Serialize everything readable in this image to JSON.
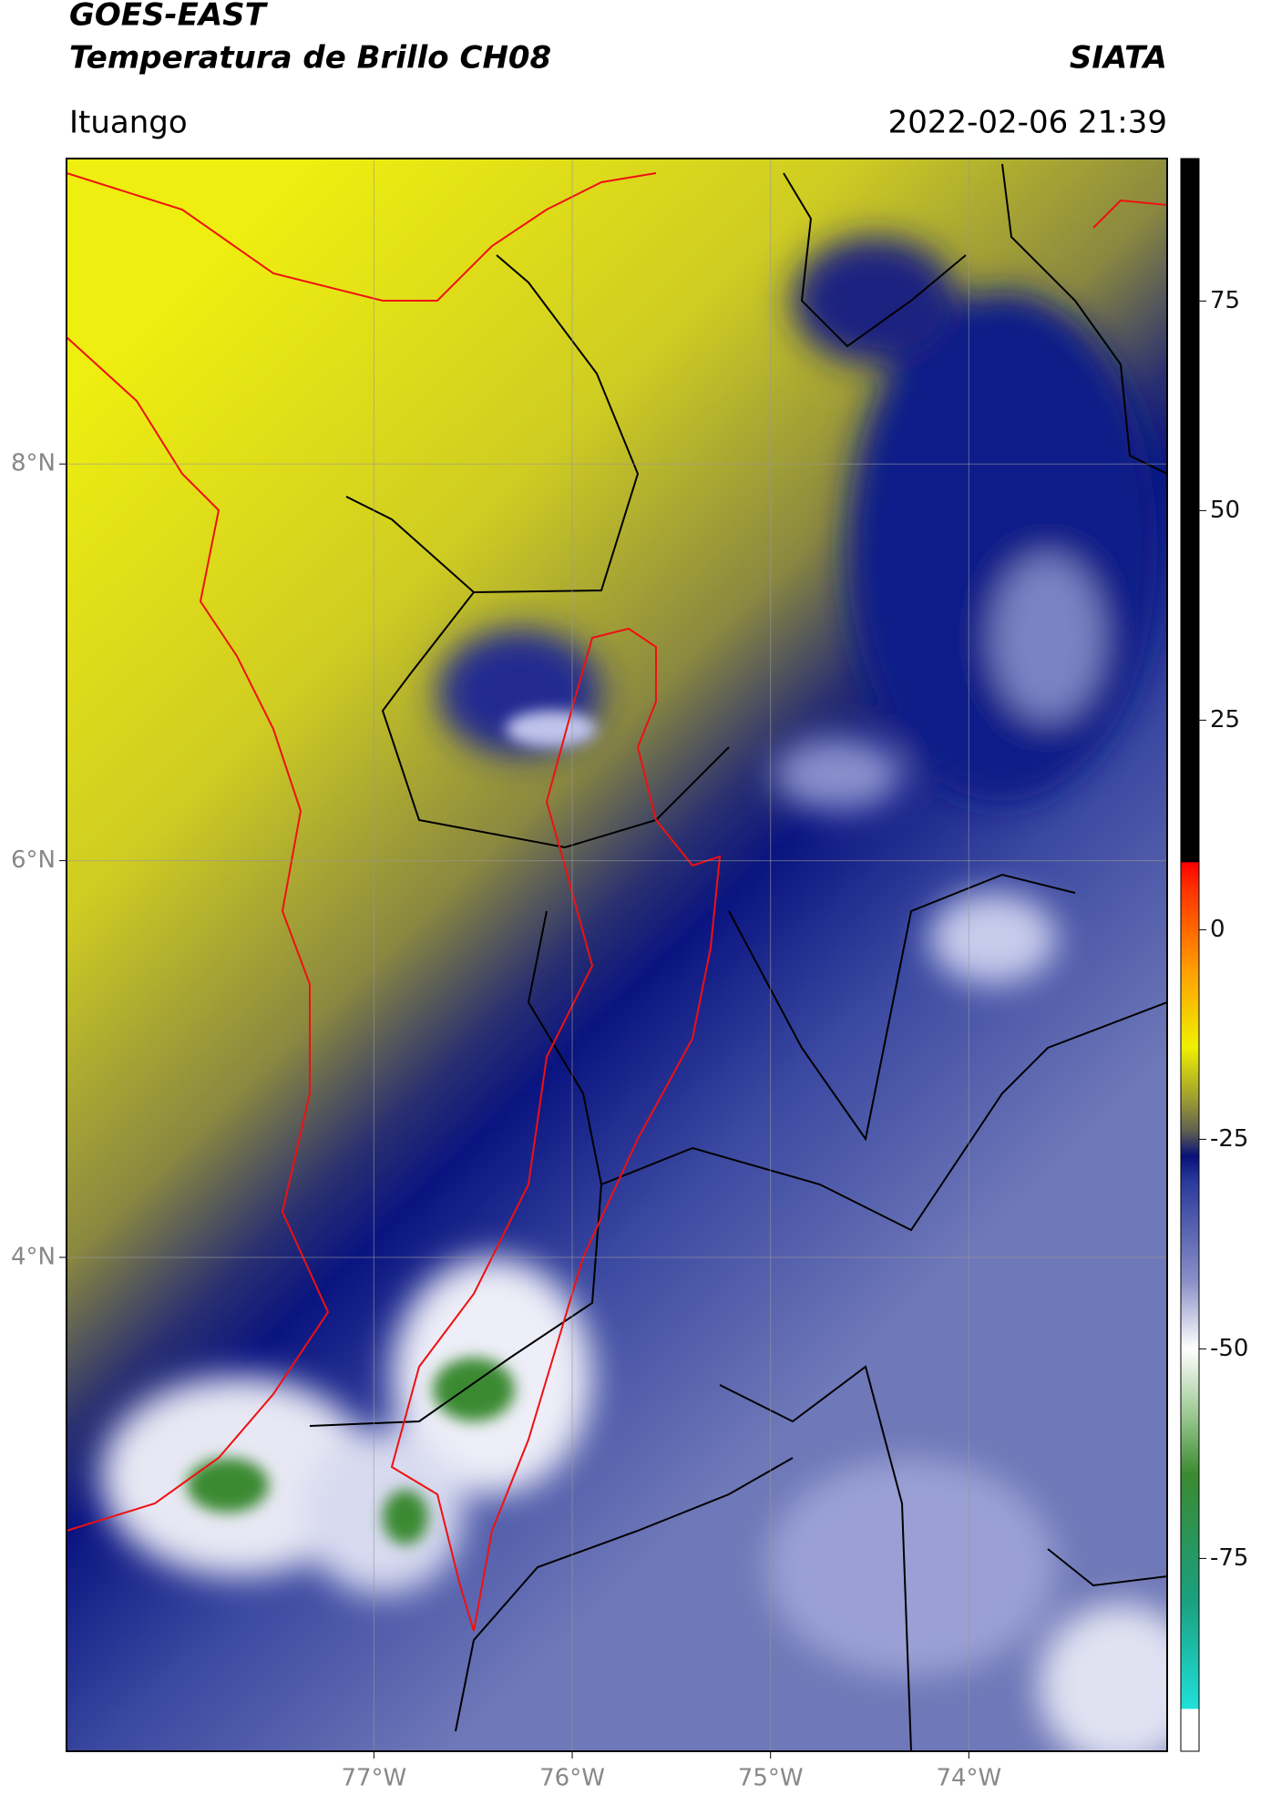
{
  "header": {
    "title": "GOES-EAST",
    "subtitle": "Temperatura de Brillo CH08",
    "source": "SIATA",
    "location": "Ituango",
    "datetime": "2022-02-06 21:39"
  },
  "map": {
    "xlim": [
      -78.55,
      -73.0
    ],
    "ylim": [
      1.51,
      9.54
    ],
    "xticks": [
      {
        "value": -77,
        "label": "77°W"
      },
      {
        "value": -76,
        "label": "76°W"
      },
      {
        "value": -75,
        "label": "75°W"
      },
      {
        "value": -74,
        "label": "74°W"
      }
    ],
    "yticks": [
      {
        "value": 4,
        "label": "4°N"
      },
      {
        "value": 6,
        "label": "6°N"
      },
      {
        "value": 8,
        "label": "8°N"
      }
    ],
    "grid": true
  },
  "colorbar": {
    "lim": [
      -98,
      92
    ],
    "ticks": [
      -75,
      -50,
      -25,
      0,
      25,
      50,
      75
    ],
    "colormap": [
      {
        "value": -98,
        "color": "#ffffff"
      },
      {
        "value": -93,
        "color": "#ffffff"
      },
      {
        "value": -92.9,
        "color": "#20e0d8"
      },
      {
        "value": -80,
        "color": "#1aa080"
      },
      {
        "value": -65,
        "color": "#3a8a30"
      },
      {
        "value": -58,
        "color": "#9ac890"
      },
      {
        "value": -50,
        "color": "#ffffff"
      },
      {
        "value": -42,
        "color": "#8a90c8"
      },
      {
        "value": -30,
        "color": "#2a3a9a"
      },
      {
        "value": -27,
        "color": "#081078"
      },
      {
        "value": -24,
        "color": "#606050"
      },
      {
        "value": -20,
        "color": "#a0a030"
      },
      {
        "value": -14,
        "color": "#f0f000"
      },
      {
        "value": -5,
        "color": "#ffa000"
      },
      {
        "value": 5,
        "color": "#ff3000"
      },
      {
        "value": 8,
        "color": "#ff0000"
      },
      {
        "value": 8.1,
        "color": "#000000"
      },
      {
        "value": 92,
        "color": "#000000"
      }
    ]
  }
}
